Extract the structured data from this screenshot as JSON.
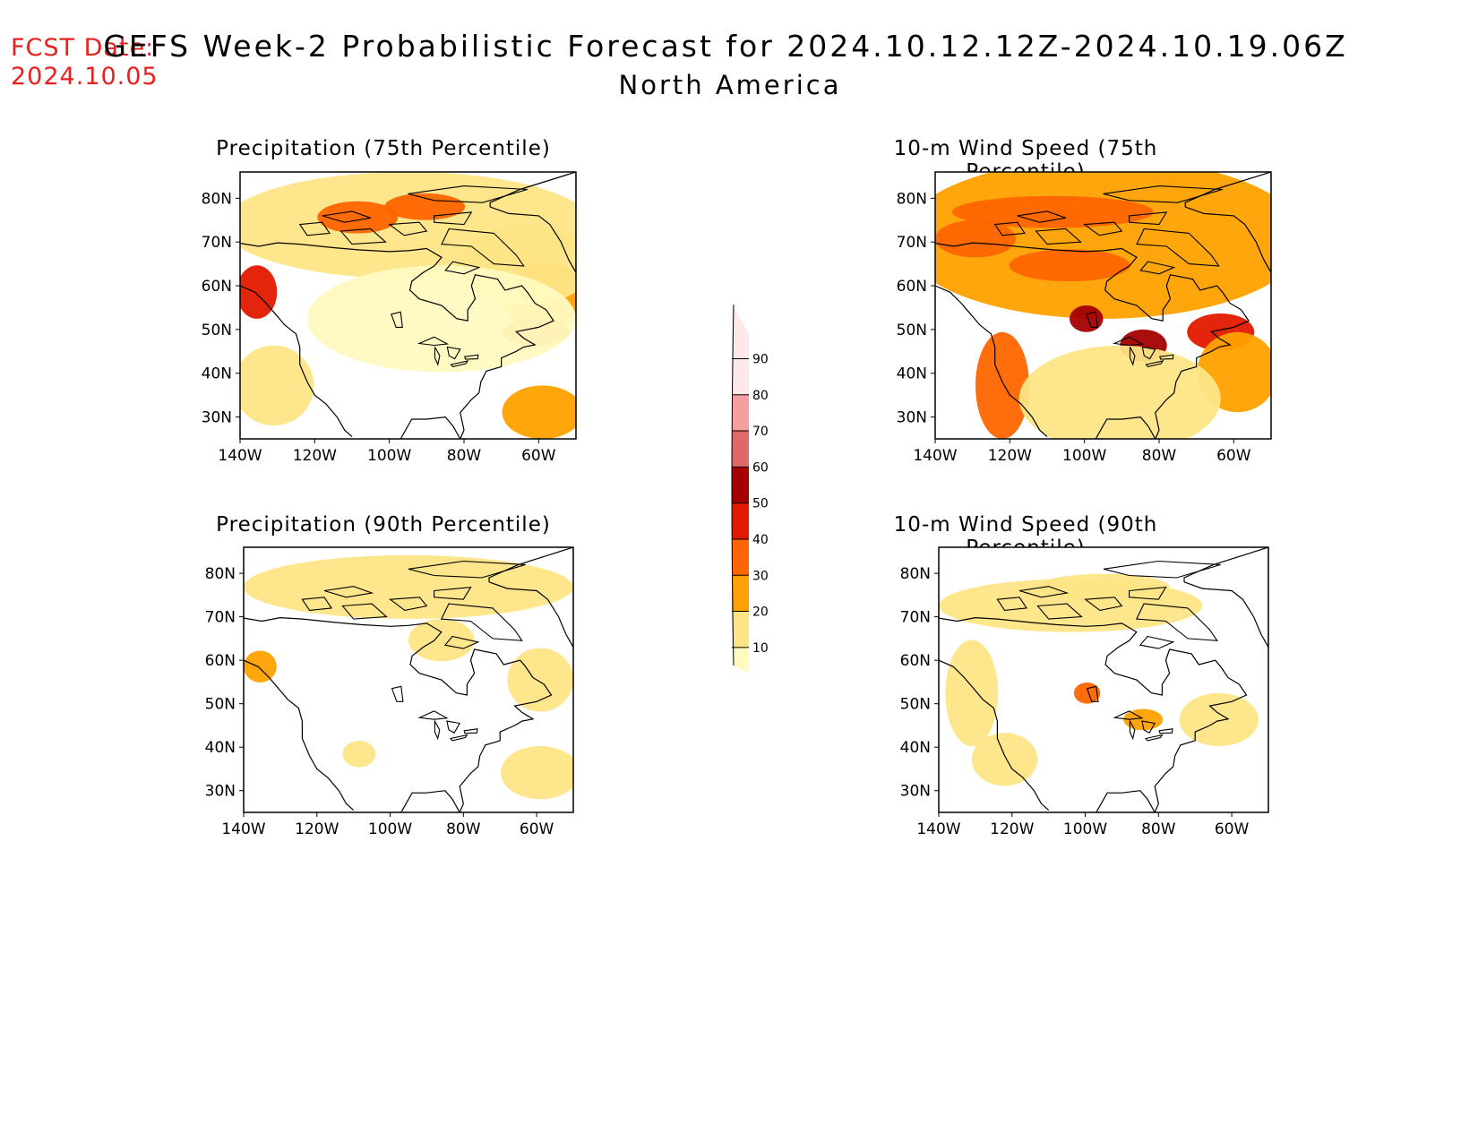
{
  "header": {
    "fcst_date_label": "FCST Date:",
    "fcst_date_value": "2024.10.05",
    "title": "GEFS Week-2 Probabilistic Forecast for 2024.10.12.12Z-2024.10.19.06Z",
    "subtitle": "North America"
  },
  "panels": [
    {
      "id": "precip-75",
      "title": "Precipitation (75th Percentile)",
      "intensity": 1.0
    },
    {
      "id": "wind-75",
      "title": "10-m Wind Speed (75th Percentile)",
      "intensity": 1.2
    },
    {
      "id": "precip-90",
      "title": "Precipitation (90th Percentile)",
      "intensity": 0.35
    },
    {
      "id": "wind-90",
      "title": "10-m Wind Speed (90th Percentile)",
      "intensity": 0.45
    }
  ],
  "axes": {
    "lat_labels": [
      "80N",
      "70N",
      "60N",
      "50N",
      "40N",
      "30N"
    ],
    "lon_labels": [
      "140W",
      "120W",
      "100W",
      "80W",
      "60W"
    ]
  },
  "colorbar": {
    "levels": [
      "10",
      "20",
      "30",
      "40",
      "50",
      "60",
      "70",
      "80",
      "90"
    ],
    "colors": [
      "#fffac0",
      "#fde586",
      "#ffa100",
      "#ff6500",
      "#e11900",
      "#a50000",
      "#e06868",
      "#f5a0a0",
      "#ffe8e8"
    ]
  }
}
